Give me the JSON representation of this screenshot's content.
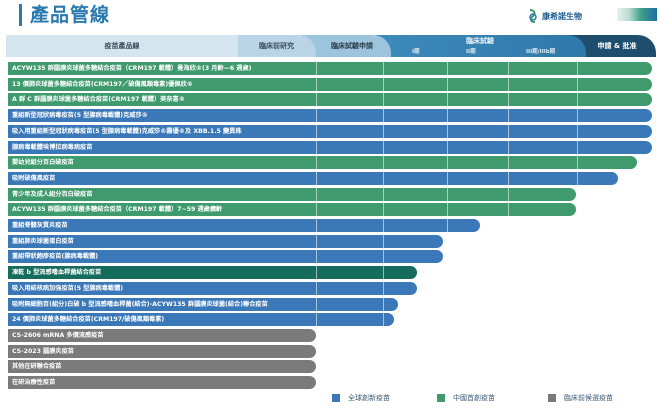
{
  "title": "產品管線",
  "logo": {
    "text": "康希諾生物",
    "icon": "cansino-logo-icon"
  },
  "header": {
    "product": "疫苗產品線",
    "preclinical": "臨床前研究",
    "ind": "臨床試驗申請",
    "clinical": "臨床試驗",
    "phase1": "I期",
    "phase2": "II期",
    "phase3": "III期/IIIb期",
    "approval": "申請 & 批准"
  },
  "colors": {
    "global": "#3b78b8",
    "china": "#3f9a6e",
    "preclinical": "#7a7a7a",
    "highlight": "#156b5c"
  },
  "rows": [
    {
      "name": "ACYW135 群腦膜炎球菌多糖結合疫苗（CRM197 載體）曼海欣®(3 月齡—6 週歲)",
      "type": "china",
      "progress": 100
    },
    {
      "name": "13 價肺炎球菌多糖結合疫苗(CRM197／破傷風類毒素)優佩欣®",
      "type": "china",
      "progress": 100
    },
    {
      "name": "A 群 C 群腦膜炎球菌多糖結合疫苗(CRM197 載體）美奈喜®",
      "type": "china",
      "progress": 100
    },
    {
      "name": "重組新型冠狀病毒疫苗(5 型腺病毒載體)克威莎®",
      "type": "global",
      "progress": 100
    },
    {
      "name": "吸入用重組新型冠狀病毒疫苗(5 型腺病毒載體)克威莎®霧優®及 XBB.1.5 變異株",
      "type": "global",
      "progress": 100
    },
    {
      "name": "腺病毒載體埃博拉病毒病疫苗",
      "type": "global",
      "progress": 100
    },
    {
      "name": "嬰幼兒組分百白破疫苗",
      "type": "china",
      "progress": 97.7
    },
    {
      "name": "吸附破傷風疫苗",
      "type": "global",
      "progress": 94.7
    },
    {
      "name": "青少年及成人組分百白破疫苗",
      "type": "china",
      "progress": 88.2
    },
    {
      "name": "ACYW135 群腦膜炎球菌多糖結合疫苗（CRM197 載體）7~59 週歲擴齡",
      "type": "china",
      "progress": 88.2
    },
    {
      "name": "重組脊髓灰質炎疫苗",
      "type": "global",
      "progress": 73.3
    },
    {
      "name": "重組肺炎球菌蛋白疫苗",
      "type": "global",
      "progress": 67.5
    },
    {
      "name": "重組帶狀皰疹疫苗(腺病毒載體)",
      "type": "global",
      "progress": 67.5
    },
    {
      "name": "凍乾 b 型流感嗜血桿菌結合疫苗",
      "type": "highlight",
      "progress": 63.5
    },
    {
      "name": "吸入用結核病加強疫苗(5 型腺病毒載體)",
      "type": "global",
      "progress": 63.5
    },
    {
      "name": "吸附無細胞百(組分)白破 b 型流感嗜血桿菌(結合)-ACYW135 群腦膜炎球菌(結合)聯合疫苗",
      "type": "global",
      "progress": 60.6
    },
    {
      "name": "24 價肺炎球菌多糖結合疫苗(CRM197/破傷風類毒素)",
      "type": "global",
      "progress": 60.0
    },
    {
      "name": "CS-2606 mRNA 多價流感疫苗",
      "type": "preclinical",
      "progress": 47.8
    },
    {
      "name": "CS-2023 腦膜炎疫苗",
      "type": "preclinical",
      "progress": 47.8
    },
    {
      "name": "其他在研聯合疫苗",
      "type": "preclinical",
      "progress": 47.8
    },
    {
      "name": "在研治療性疫苗",
      "type": "preclinical",
      "progress": 47.8
    }
  ],
  "legend": [
    {
      "label": "全球創新疫苗",
      "type": "global"
    },
    {
      "label": "中國首創疫苗",
      "type": "china"
    },
    {
      "label": "臨床前候選疫苗",
      "type": "preclinical"
    }
  ]
}
